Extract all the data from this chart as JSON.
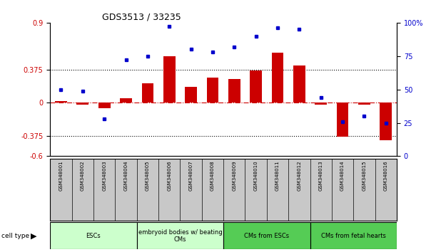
{
  "title": "GDS3513 / 33235",
  "samples": [
    "GSM348001",
    "GSM348002",
    "GSM348003",
    "GSM348004",
    "GSM348005",
    "GSM348006",
    "GSM348007",
    "GSM348008",
    "GSM348009",
    "GSM348010",
    "GSM348011",
    "GSM348012",
    "GSM348013",
    "GSM348014",
    "GSM348015",
    "GSM348016"
  ],
  "log10_ratio": [
    0.02,
    -0.02,
    -0.06,
    0.05,
    0.22,
    0.52,
    0.18,
    0.28,
    0.27,
    0.36,
    0.56,
    0.42,
    -0.02,
    -0.38,
    -0.02,
    -0.42
  ],
  "percentile_rank": [
    50,
    49,
    28,
    72,
    75,
    97,
    80,
    78,
    82,
    90,
    96,
    95,
    44,
    26,
    30,
    25
  ],
  "ylim_left": [
    -0.6,
    0.9
  ],
  "ylim_right": [
    0,
    100
  ],
  "yticks_left": [
    -0.6,
    -0.375,
    0,
    0.375,
    0.9
  ],
  "yticks_right": [
    0,
    25,
    50,
    75,
    100
  ],
  "ytick_labels_left": [
    "-0.6",
    "-0.375",
    "0",
    "0.375",
    "0.9"
  ],
  "ytick_labels_right": [
    "0",
    "25",
    "50",
    "75",
    "100%"
  ],
  "hlines": [
    -0.375,
    0.375
  ],
  "cell_type_groups": [
    {
      "label": "ESCs",
      "start": 0,
      "end": 3,
      "color_light": "#CCFFCC",
      "color_dark": "#CCFFCC"
    },
    {
      "label": "embryoid bodies w/ beating\nCMs",
      "start": 4,
      "end": 7,
      "color_light": "#CCFFCC",
      "color_dark": "#CCFFCC"
    },
    {
      "label": "CMs from ESCs",
      "start": 8,
      "end": 11,
      "color_light": "#55CC55",
      "color_dark": "#55CC55"
    },
    {
      "label": "CMs from fetal hearts",
      "start": 12,
      "end": 15,
      "color_light": "#55CC55",
      "color_dark": "#55CC55"
    }
  ],
  "bar_color": "#CC0000",
  "dot_color": "#0000CC",
  "zero_line_color": "#CC0000",
  "grid_color": "#000000",
  "xlab_bg": "#C8C8C8",
  "right_tick_labels": [
    "0",
    "25",
    "50",
    "75",
    "100%"
  ]
}
